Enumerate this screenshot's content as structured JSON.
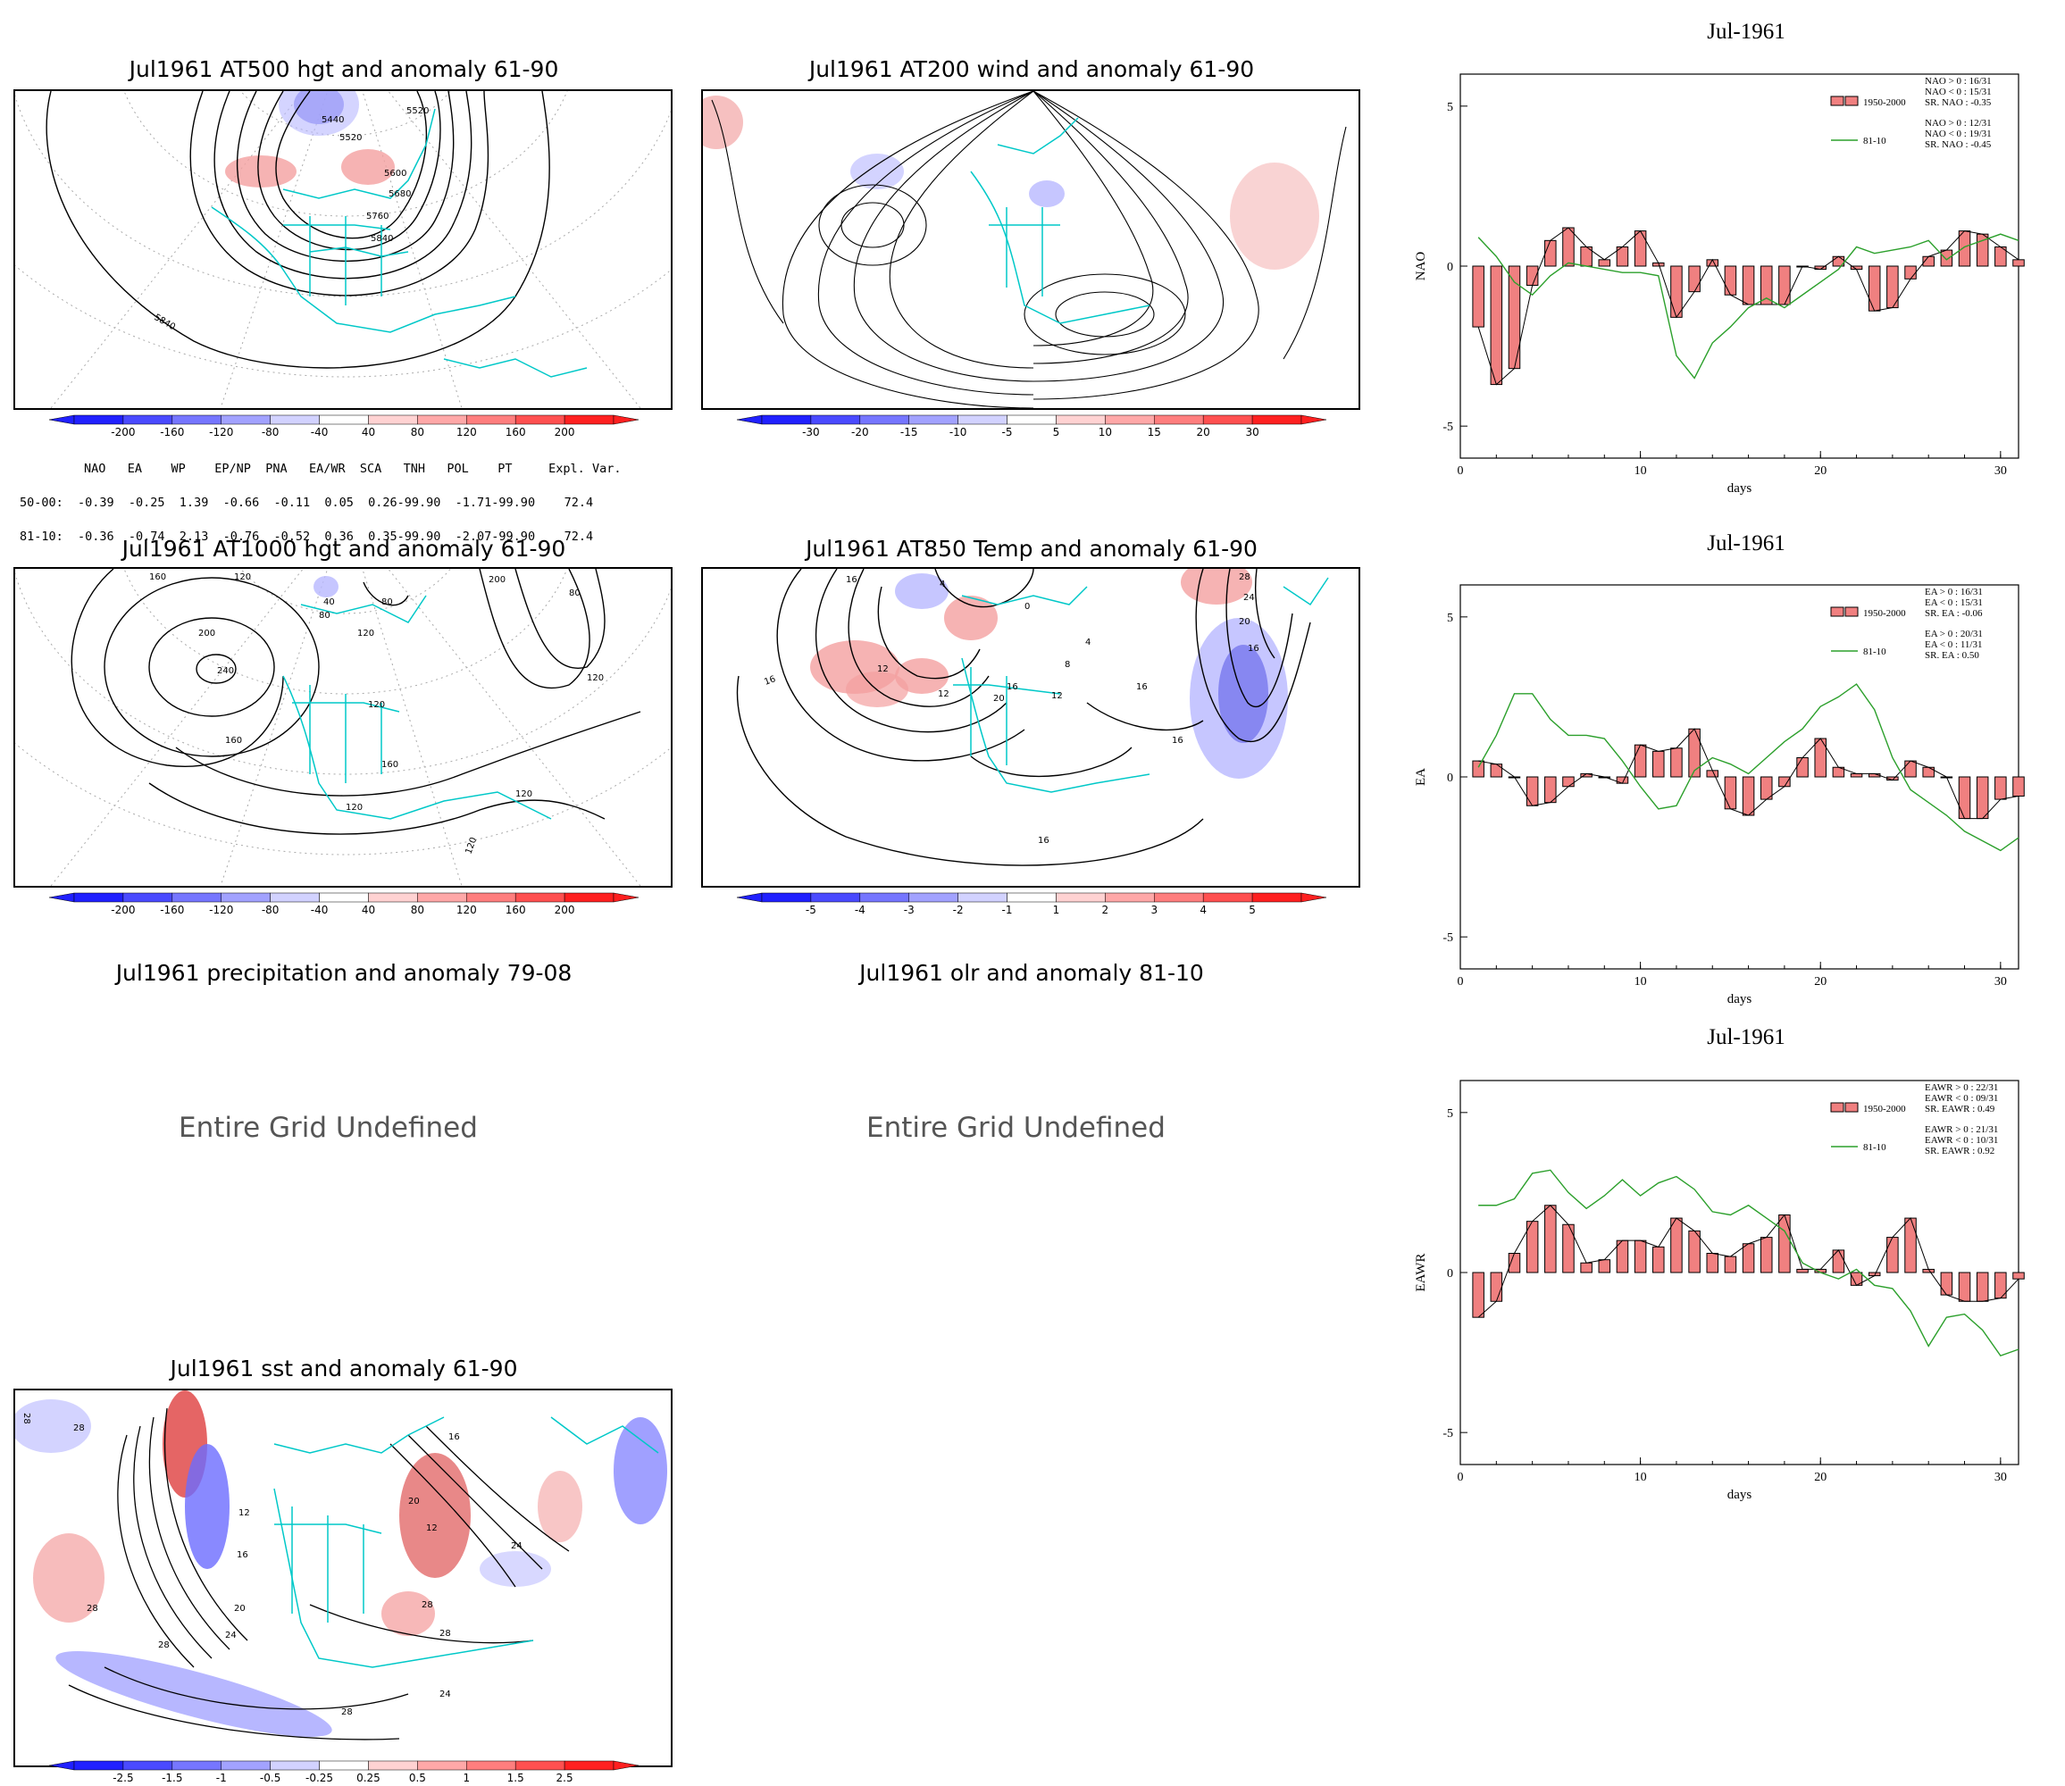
{
  "colors": {
    "coast": "#00c8c8",
    "contour": "#000000",
    "pos_anom": "#f08080",
    "neg_anom": "#6b6bff",
    "bar_fill": "#f08080",
    "line_8110": "#2ca02c"
  },
  "maps": {
    "at500": {
      "title": "Jul1961 AT500 hgt and anomaly 61-90",
      "labels": [
        "5440",
        "5520",
        "5520",
        "5600",
        "5680",
        "5760",
        "5840",
        "5840"
      ],
      "cbar": [
        "-200",
        "-160",
        "-120",
        "-80",
        "-40",
        "40",
        "80",
        "120",
        "160",
        "200"
      ]
    },
    "at200": {
      "title": "Jul1961 AT200 wind and anomaly 61-90",
      "cbar": [
        "-30",
        "-20",
        "-15",
        "-10",
        "-5",
        "5",
        "10",
        "15",
        "20",
        "30"
      ]
    },
    "at1000": {
      "title": "Jul1961 AT1000 hgt and anomaly 61-90",
      "labels": [
        "160",
        "120",
        "80",
        "40",
        "80",
        "120",
        "200",
        "80",
        "200",
        "240",
        "160",
        "120",
        "160",
        "120",
        "120",
        "120",
        "120",
        "160"
      ],
      "cbar": [
        "-200",
        "-160",
        "-120",
        "-80",
        "-40",
        "40",
        "80",
        "120",
        "160",
        "200"
      ]
    },
    "at850": {
      "title": "Jul1961 AT850 Temp and anomaly 61-90",
      "labels": [
        "16",
        "4",
        "0",
        "28",
        "24",
        "20",
        "16",
        "12",
        "12",
        "16",
        "20",
        "8",
        "16",
        "12",
        "4",
        "16",
        "16",
        "16",
        "24"
      ],
      "cbar": [
        "-5",
        "-4",
        "-3",
        "-2",
        "-1",
        "1",
        "2",
        "3",
        "4",
        "5"
      ]
    },
    "precip": {
      "title": "Jul1961 precipitation and anomaly 79-08",
      "message": "Entire Grid Undefined"
    },
    "olr": {
      "title": "Jul1961 olr and anomaly 81-10",
      "message": "Entire Grid Undefined"
    },
    "sst": {
      "title": "Jul1961 sst and anomaly 61-90",
      "labels": [
        "28",
        "28",
        "12",
        "16",
        "20",
        "24",
        "28",
        "28",
        "28",
        "20",
        "24",
        "28",
        "16",
        "24",
        "12",
        "28"
      ],
      "cbar": [
        "-2.5",
        "-1.5",
        "-1",
        "-0.5",
        "-0.25",
        "0.25",
        "0.5",
        "1",
        "1.5",
        "2.5"
      ]
    }
  },
  "index_table": {
    "header": "NAO   EA    WP    EP/NP  PNA   EA/WR  SCA   TNH   POL    PT     Expl. Var.",
    "row1": "50-00:  -0.39  -0.25  1.39  -0.66  -0.11  0.05  0.26-99.90  -1.71-99.90    72.4",
    "row2": "81-10:  -0.36  -0.74  2.13  -0.76  -0.52  0.36  0.35-99.90  -2.07-99.90    72.4"
  },
  "chart_data": [
    {
      "type": "bar",
      "title": "Jul-1961",
      "xlabel": "days",
      "ylabel": "NAO",
      "xlim": [
        0,
        31
      ],
      "ylim": [
        -6,
        6
      ],
      "xticks": [
        0,
        10,
        20,
        30
      ],
      "yticks": [
        -5,
        0,
        5
      ],
      "x": [
        1,
        2,
        3,
        4,
        5,
        6,
        7,
        8,
        9,
        10,
        11,
        12,
        13,
        14,
        15,
        16,
        17,
        18,
        19,
        20,
        21,
        22,
        23,
        24,
        25,
        26,
        27,
        28,
        29,
        30,
        31
      ],
      "series": [
        {
          "name": "1950-2000",
          "type": "bar",
          "values": [
            -1.9,
            -3.7,
            -3.2,
            -0.6,
            0.8,
            1.2,
            0.6,
            0.2,
            0.6,
            1.1,
            0.1,
            -1.6,
            -0.8,
            0.2,
            -0.9,
            -1.2,
            -1.2,
            -1.2,
            0.0,
            -0.1,
            0.3,
            -0.1,
            -1.4,
            -1.3,
            -0.4,
            0.3,
            0.5,
            1.1,
            1.0,
            0.6,
            0.2
          ]
        },
        {
          "name": "81-10",
          "type": "line",
          "values": [
            0.9,
            0.3,
            -0.5,
            -0.9,
            -0.3,
            0.1,
            0.0,
            -0.1,
            -0.2,
            -0.2,
            -0.3,
            -2.8,
            -3.5,
            -2.4,
            -1.9,
            -1.3,
            -1.0,
            -1.3,
            -0.9,
            -0.5,
            -0.1,
            0.6,
            0.4,
            0.5,
            0.6,
            0.8,
            0.2,
            0.6,
            0.8,
            1.0,
            0.8
          ]
        }
      ],
      "stats": {
        "1950-2000": [
          "NAO > 0 : 16/31",
          "NAO < 0 : 15/31",
          "SR. NAO : -0.35"
        ],
        "81-10": [
          "NAO > 0 : 12/31",
          "NAO < 0 : 19/31",
          "SR. NAO : -0.45"
        ]
      }
    },
    {
      "type": "bar",
      "title": "Jul-1961",
      "xlabel": "days",
      "ylabel": "EA",
      "xlim": [
        0,
        31
      ],
      "ylim": [
        -6,
        6
      ],
      "xticks": [
        0,
        10,
        20,
        30
      ],
      "yticks": [
        -5,
        0,
        5
      ],
      "x": [
        1,
        2,
        3,
        4,
        5,
        6,
        7,
        8,
        9,
        10,
        11,
        12,
        13,
        14,
        15,
        16,
        17,
        18,
        19,
        20,
        21,
        22,
        23,
        24,
        25,
        26,
        27,
        28,
        29,
        30,
        31
      ],
      "series": [
        {
          "name": "1950-2000",
          "type": "bar",
          "values": [
            0.5,
            0.4,
            0.0,
            -0.9,
            -0.8,
            -0.3,
            0.1,
            0.0,
            -0.2,
            1.0,
            0.8,
            0.9,
            1.5,
            0.2,
            -1.0,
            -1.2,
            -0.7,
            -0.3,
            0.6,
            1.2,
            0.3,
            0.1,
            0.1,
            -0.1,
            0.5,
            0.3,
            0.0,
            -1.3,
            -1.3,
            -0.7,
            -0.6
          ]
        },
        {
          "name": "81-10",
          "type": "line",
          "values": [
            0.3,
            1.3,
            2.6,
            2.6,
            1.8,
            1.3,
            1.3,
            1.2,
            0.5,
            -0.3,
            -1.0,
            -0.9,
            0.2,
            0.6,
            0.4,
            0.1,
            0.6,
            1.1,
            1.5,
            2.2,
            2.5,
            2.9,
            2.1,
            0.6,
            -0.4,
            -0.8,
            -1.2,
            -1.7,
            -2.0,
            -2.3,
            -1.9
          ]
        }
      ],
      "stats": {
        "1950-2000": [
          "EA > 0 : 16/31",
          "EA < 0 : 15/31",
          "SR. EA : -0.06"
        ],
        "81-10": [
          "EA > 0 : 20/31",
          "EA < 0 : 11/31",
          "SR. EA :  0.50"
        ]
      }
    },
    {
      "type": "bar",
      "title": "Jul-1961",
      "xlabel": "days",
      "ylabel": "EAWR",
      "xlim": [
        0,
        31
      ],
      "ylim": [
        -6,
        6
      ],
      "xticks": [
        0,
        10,
        20,
        30
      ],
      "yticks": [
        -5,
        0,
        5
      ],
      "x": [
        1,
        2,
        3,
        4,
        5,
        6,
        7,
        8,
        9,
        10,
        11,
        12,
        13,
        14,
        15,
        16,
        17,
        18,
        19,
        20,
        21,
        22,
        23,
        24,
        25,
        26,
        27,
        28,
        29,
        30,
        31
      ],
      "series": [
        {
          "name": "1950-2000",
          "type": "bar",
          "values": [
            -1.4,
            -0.9,
            0.6,
            1.6,
            2.1,
            1.5,
            0.3,
            0.4,
            1.0,
            1.0,
            0.8,
            1.7,
            1.3,
            0.6,
            0.5,
            0.9,
            1.1,
            1.8,
            0.1,
            0.1,
            0.7,
            -0.4,
            -0.1,
            1.1,
            1.7,
            0.1,
            -0.7,
            -0.9,
            -0.9,
            -0.8,
            -0.2
          ]
        },
        {
          "name": "81-10",
          "type": "line",
          "values": [
            2.1,
            2.1,
            2.3,
            3.1,
            3.2,
            2.5,
            2.0,
            2.4,
            2.9,
            2.4,
            2.8,
            3.0,
            2.6,
            1.9,
            1.8,
            2.1,
            1.7,
            1.3,
            0.3,
            0.0,
            -0.2,
            0.1,
            -0.4,
            -0.5,
            -1.2,
            -2.3,
            -1.4,
            -1.3,
            -1.8,
            -2.6,
            -2.4
          ]
        }
      ],
      "stats": {
        "1950-2000": [
          "EAWR > 0 : 22/31",
          "EAWR < 0 : 09/31",
          "SR. EAWR :  0.49"
        ],
        "81-10": [
          "EAWR > 0 : 21/31",
          "EAWR < 0 : 10/31",
          "SR. EAWR :  0.92"
        ]
      }
    }
  ]
}
